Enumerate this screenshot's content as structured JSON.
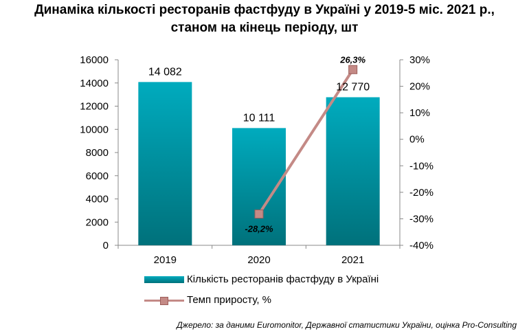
{
  "title_line1": "Динаміка кількості ресторанів фастфуду в Україні у 2019-5 міс. 2021 р.,",
  "title_line2": "станом на кінець періоду, шт",
  "source": "Джерело: за даними Euromonitor, Державної статистики України, оцінка Pro-Consulting",
  "colors": {
    "bar_top": "#00abbe",
    "bar_bottom": "#00717b",
    "line": "#c48a86",
    "marker": "#c48a86"
  },
  "chart_data": {
    "type": "bar",
    "categories": [
      "2019",
      "2020",
      "2021"
    ],
    "series": [
      {
        "name": "Кількість ресторанів фастфуду  в Україні",
        "type": "bar",
        "axis": "left",
        "values": [
          14082,
          10111,
          12770
        ],
        "data_labels": [
          "14 082",
          "10 111",
          "12 770"
        ]
      },
      {
        "name": "Темп приросту, %",
        "type": "line",
        "axis": "right",
        "values": [
          null,
          -28.2,
          26.3
        ],
        "data_labels": [
          "",
          "-28,2%",
          "26,3%"
        ]
      }
    ],
    "y_left": {
      "min": 0,
      "max": 16000,
      "ticks": [
        "0",
        "2000",
        "4000",
        "6000",
        "8000",
        "10000",
        "12000",
        "14000",
        "16000"
      ]
    },
    "y_right": {
      "min": -40,
      "max": 30,
      "ticks": [
        "-40%",
        "-30%",
        "-20%",
        "-10%",
        "0%",
        "10%",
        "20%",
        "30%"
      ]
    },
    "grid": false,
    "legend_position": "bottom"
  }
}
